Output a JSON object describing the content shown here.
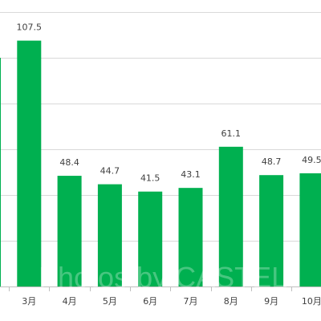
{
  "chart_data": {
    "type": "bar",
    "categories": [
      "",
      "3月",
      "4月",
      "5月",
      "6月",
      "7月",
      "8月",
      "9月",
      "10月"
    ],
    "values": [
      100.0,
      107.5,
      48.4,
      44.7,
      41.5,
      43.1,
      61.1,
      48.7,
      49.5
    ],
    "value_labels": [
      "",
      "107.5",
      "48.4",
      "44.7",
      "41.5",
      "43.1",
      "61.1",
      "48.7",
      "49.5"
    ],
    "ylim": [
      0,
      120
    ],
    "grid": true,
    "bar_color": "#00b050",
    "gridline_color": "#d9d9d9",
    "axis_color": "#bfbfbf",
    "watermark": "Photos by CASTEL"
  }
}
